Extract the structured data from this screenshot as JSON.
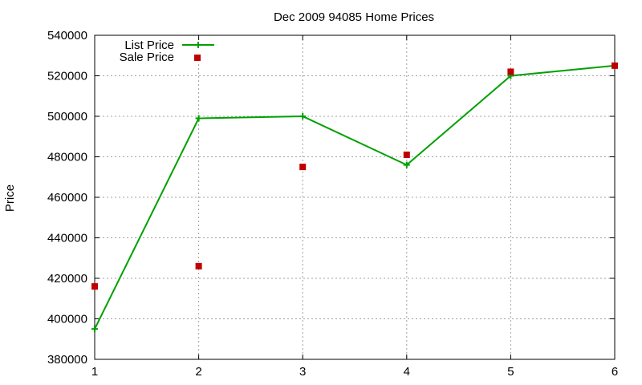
{
  "chart_data": {
    "type": "line",
    "title": "Dec 2009 94085 Home Prices",
    "xlabel": "",
    "ylabel": "Price",
    "x": [
      1,
      2,
      3,
      4,
      5,
      6
    ],
    "xlim": [
      1,
      6
    ],
    "ylim": [
      380000,
      540000
    ],
    "x_ticks": [
      "1",
      "2",
      "3",
      "4",
      "5",
      "6"
    ],
    "y_ticks": [
      "380000",
      "400000",
      "420000",
      "440000",
      "460000",
      "480000",
      "500000",
      "520000",
      "540000"
    ],
    "grid": true,
    "legend_position": "top-left",
    "series": [
      {
        "name": "List Price",
        "kind": "line",
        "marker": "plus",
        "color": "#00a000",
        "values": [
          395000,
          499000,
          500000,
          476000,
          520000,
          525000
        ]
      },
      {
        "name": "Sale Price",
        "kind": "scatter",
        "marker": "square",
        "color": "#c00000",
        "values": [
          416000,
          426000,
          475000,
          481000,
          522000,
          525000
        ]
      }
    ]
  }
}
